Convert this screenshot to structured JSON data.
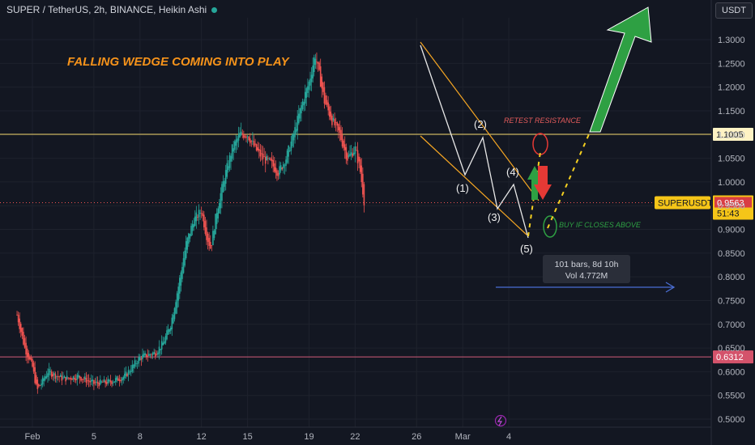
{
  "header": {
    "symbol_line": "SUPER / TetherUS, 2h, BINANCE, Heikin Ashi",
    "currency_button": "USDT"
  },
  "colors": {
    "background": "#131722",
    "up": "#26a69a",
    "down": "#ef5350",
    "resistance": "#f5d76e",
    "support": "#d05c7a",
    "wedge": "#f5a623",
    "title": "#f7931a",
    "arrow_up": "#2ea043",
    "arrow_down": "#e53935",
    "measure": "#4a6ed4"
  },
  "chart_data": {
    "type": "candlestick",
    "title": "FALLING WEDGE COMING INTO PLAY",
    "ylim": [
      0.5,
      1.32
    ],
    "y_ticks": [
      "1.3000",
      "1.2500",
      "1.2000",
      "1.1500",
      "1.1000",
      "1.0500",
      "1.0000",
      "0.9500",
      "0.9000",
      "0.8500",
      "0.8000",
      "0.7500",
      "0.7000",
      "0.6500",
      "0.6000",
      "0.5500",
      "0.5000"
    ],
    "x_ticks": [
      "Feb",
      "5",
      "8",
      "12",
      "15",
      "19",
      "22",
      "26",
      "Mar",
      "4"
    ],
    "x_tick_days": [
      1,
      5,
      8,
      12,
      15,
      19,
      22,
      26,
      29,
      32
    ],
    "x_range_days": [
      0,
      33.2
    ],
    "price_path": [
      [
        0,
        0.72
      ],
      [
        0.5,
        0.65
      ],
      [
        1,
        0.61
      ],
      [
        1.3,
        0.56
      ],
      [
        2,
        0.6
      ],
      [
        3,
        0.585
      ],
      [
        4,
        0.59
      ],
      [
        5,
        0.575
      ],
      [
        6,
        0.578
      ],
      [
        7,
        0.59
      ],
      [
        7.5,
        0.61
      ],
      [
        8,
        0.63
      ],
      [
        9,
        0.64
      ],
      [
        9.5,
        0.66
      ],
      [
        10,
        0.7
      ],
      [
        10.5,
        0.78
      ],
      [
        11,
        0.87
      ],
      [
        11.5,
        0.92
      ],
      [
        12,
        0.94
      ],
      [
        12.3,
        0.89
      ],
      [
        12.6,
        0.86
      ],
      [
        13,
        0.94
      ],
      [
        13.5,
        1.01
      ],
      [
        14,
        1.07
      ],
      [
        14.5,
        1.1
      ],
      [
        15,
        1.1
      ],
      [
        15.5,
        1.07
      ],
      [
        16,
        1.05
      ],
      [
        16.5,
        1.04
      ],
      [
        17,
        1.02
      ],
      [
        17.5,
        1.05
      ],
      [
        18,
        1.1
      ],
      [
        18.5,
        1.16
      ],
      [
        19,
        1.21
      ],
      [
        19.4,
        1.27
      ],
      [
        19.7,
        1.22
      ],
      [
        20,
        1.17
      ],
      [
        20.5,
        1.13
      ],
      [
        21,
        1.1
      ],
      [
        21.5,
        1.05
      ],
      [
        22,
        1.07
      ],
      [
        22.3,
        1.03
      ],
      [
        22.6,
        0.956
      ]
    ],
    "horizontal_levels": [
      {
        "value": 1.1005,
        "label": "1.1005"
      },
      {
        "value": 0.6312,
        "label": "0.6312"
      }
    ],
    "last_price": {
      "symbol": "SUPERUSDT",
      "value": "0.9563",
      "countdown": "51:43"
    },
    "wedge_labels": [
      "(1)",
      "(2)",
      "(3)",
      "(4)",
      "(5)"
    ],
    "annotations": {
      "retest": "RETEST RESISTANCE",
      "buy": "BUY IF CLOSES ABOVE",
      "measure_bars": "101 bars, 8d 10h",
      "measure_vol": "Vol 4.772M"
    }
  }
}
